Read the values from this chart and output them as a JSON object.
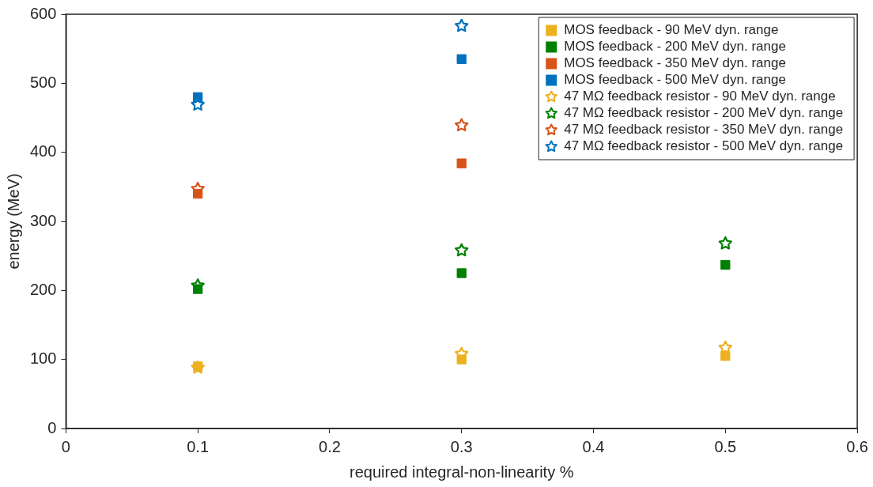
{
  "chart_data": {
    "type": "scatter",
    "xlabel": "required integral-non-linearity %",
    "ylabel": "energy (MeV)",
    "xlim": [
      0,
      0.6
    ],
    "xticks": [
      0,
      0.1,
      0.2,
      0.3,
      0.4,
      0.5,
      0.6
    ],
    "ylim": [
      0,
      600
    ],
    "yticks": [
      0,
      100,
      200,
      300,
      400,
      500,
      600
    ],
    "grid": false,
    "legend": "top right",
    "series": [
      {
        "name": "MOS feedback - 90 MeV dyn. range",
        "color": "#edb120",
        "marker": "square",
        "x": [
          0.1,
          0.3,
          0.5
        ],
        "values": [
          90,
          100,
          105
        ]
      },
      {
        "name": "MOS feedback - 200 MeV dyn. range",
        "color": "#008000",
        "marker": "square",
        "x": [
          0.1,
          0.3,
          0.5
        ],
        "values": [
          202,
          225,
          237
        ]
      },
      {
        "name": "MOS feedback - 350 MeV dyn. range",
        "color": "#d95319",
        "marker": "square",
        "x": [
          0.1,
          0.3
        ],
        "values": [
          340,
          384
        ]
      },
      {
        "name": "MOS feedback - 500 MeV dyn. range",
        "color": "#0072bd",
        "marker": "square",
        "x": [
          0.1,
          0.3
        ],
        "values": [
          480,
          535
        ]
      },
      {
        "name": "47 MΩ feedback resistor - 90 MeV dyn. range",
        "color": "#edb120",
        "marker": "star",
        "x": [
          0.1,
          0.3,
          0.5
        ],
        "values": [
          88,
          108,
          117
        ]
      },
      {
        "name": "47 MΩ feedback resistor - 200 MeV dyn. range",
        "color": "#008000",
        "marker": "star",
        "x": [
          0.1,
          0.3,
          0.5
        ],
        "values": [
          207,
          258,
          268
        ]
      },
      {
        "name": "47 MΩ feedback resistor - 350 MeV dyn. range",
        "color": "#d95319",
        "marker": "star",
        "x": [
          0.1,
          0.3
        ],
        "values": [
          347,
          439
        ]
      },
      {
        "name": "47 MΩ feedback resistor - 500 MeV dyn. range",
        "color": "#0072bd",
        "marker": "star",
        "x": [
          0.1,
          0.3
        ],
        "values": [
          469,
          583
        ]
      }
    ]
  }
}
